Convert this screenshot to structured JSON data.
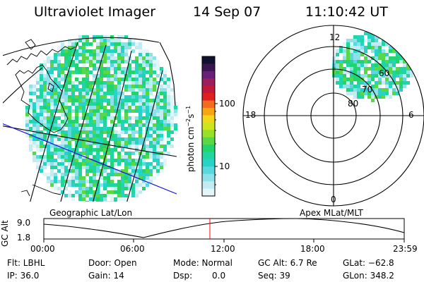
{
  "header": {
    "instrument": "Ultraviolet Imager",
    "date": "14 Sep 07",
    "time": "11:10:42 UT"
  },
  "colorbar": {
    "unit_label": "photon cm",
    "unit_sup1": "−2",
    "unit_mid": "s",
    "unit_sup2": "−1",
    "tick_labels": [
      "100",
      "10"
    ],
    "colors": [
      "#101030",
      "#3a1650",
      "#6a1e78",
      "#9b1f5c",
      "#c2183a",
      "#e02020",
      "#f36b1c",
      "#f7a412",
      "#f1d61a",
      "#cfe41c",
      "#98e02a",
      "#58d847",
      "#23d36e",
      "#1fd6a0",
      "#27d3c6",
      "#5ad8dd",
      "#8fe0e8",
      "#c2ecf1",
      "#e2f5f8"
    ]
  },
  "left_panel": {
    "caption": "Geographic Lat/Lon"
  },
  "right_panel": {
    "caption": "Apex MLat/MLT",
    "mlt_labels": {
      "top": "12",
      "bottom": "0",
      "left": "18",
      "right": "6"
    },
    "mlat_labels": [
      "60",
      "70",
      "80"
    ]
  },
  "altitude_plot": {
    "axis_label": "GC Alt",
    "y_labels": [
      "9.0",
      "1.8"
    ],
    "x_labels": [
      "00:00",
      "06:00",
      "12:00",
      "18:00",
      "23:59"
    ],
    "cursor_color": "#ff0000"
  },
  "footer": {
    "flt": "Flt: LBHL",
    "ip": "IP: 36.0",
    "door": "Door: Open",
    "gain": "Gain: 14",
    "mode": "Mode: Normal",
    "dsp_label": "Dsp:",
    "dsp_value": "0.0",
    "gcalt": "GC Alt: 6.7 Re",
    "seq": "Seq: 39",
    "glat": "GLat: −62.8",
    "glon": "GLon: 348.2"
  }
}
